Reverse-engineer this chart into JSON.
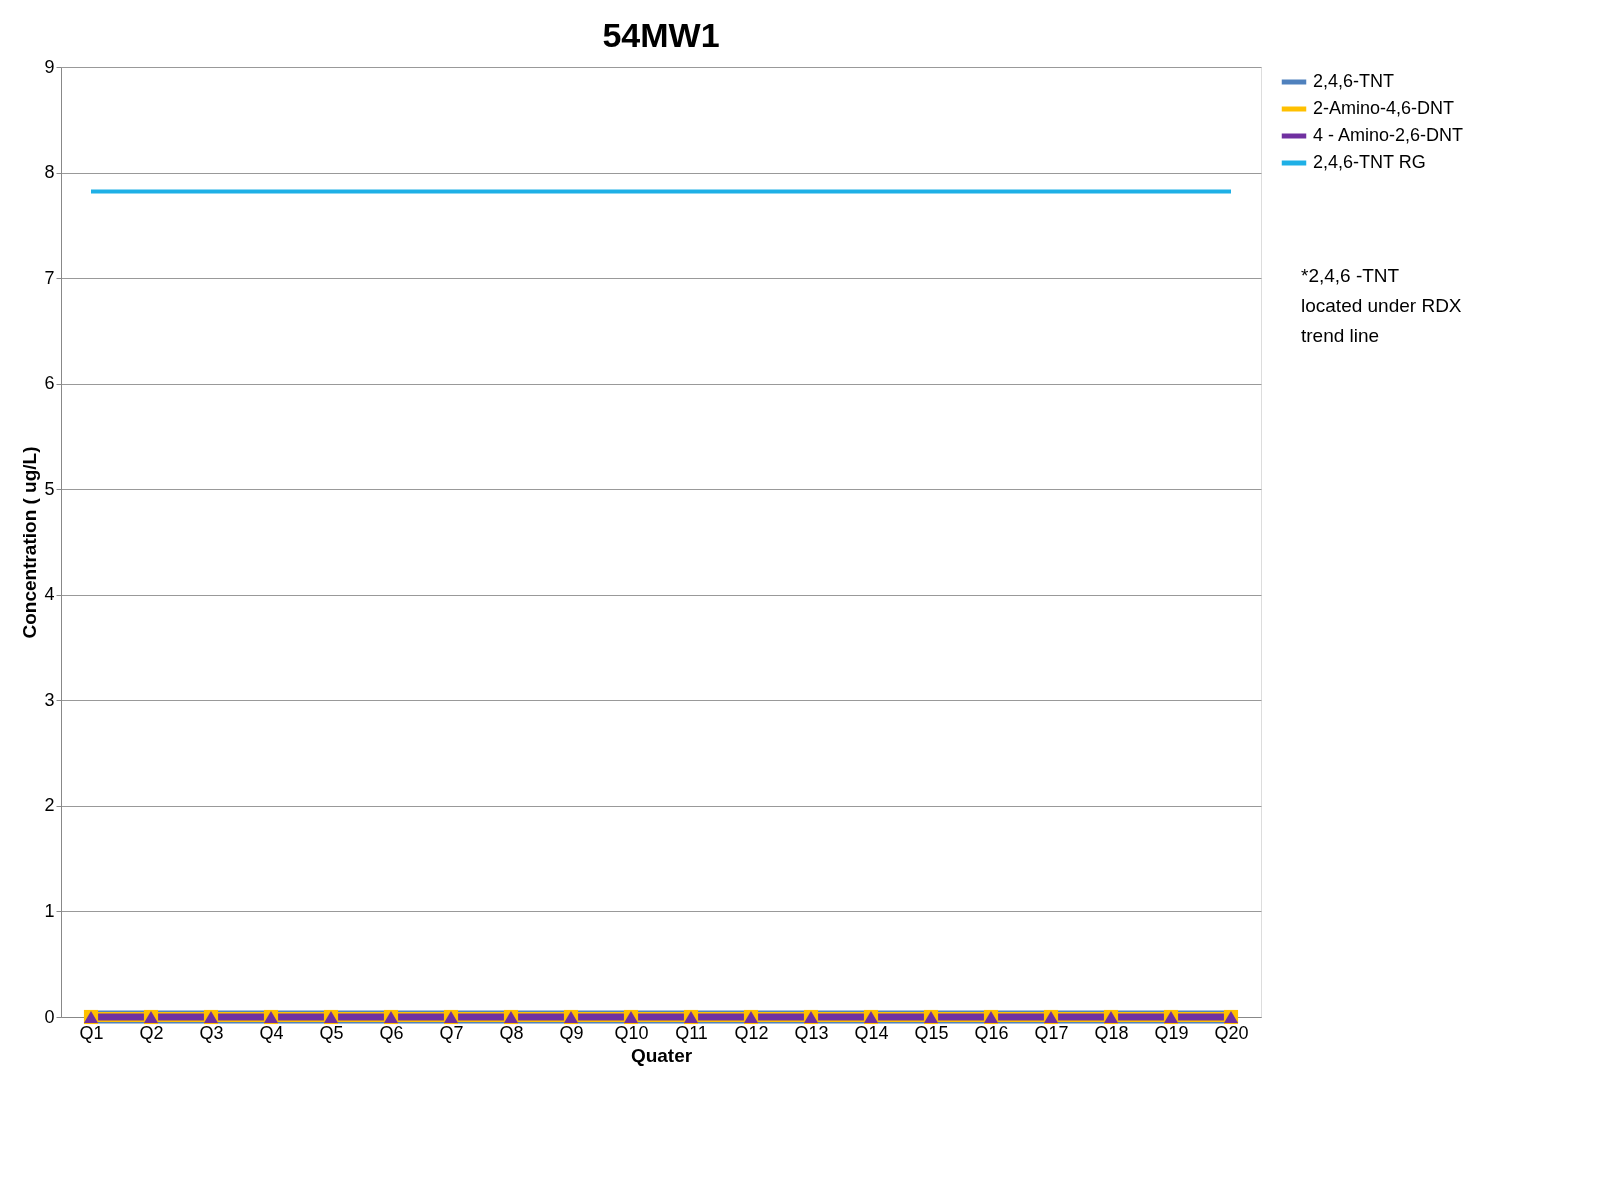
{
  "chart_data": {
    "type": "line",
    "title": "54MW1",
    "xlabel": "Quater",
    "ylabel": "Concentration ( ug/L)",
    "categories": [
      "Q1",
      "Q2",
      "Q3",
      "Q4",
      "Q5",
      "Q6",
      "Q7",
      "Q8",
      "Q9",
      "Q10",
      "Q11",
      "Q12",
      "Q13",
      "Q14",
      "Q15",
      "Q16",
      "Q17",
      "Q18",
      "Q19",
      "Q20"
    ],
    "series": [
      {
        "name": "2,4,6-TNT",
        "color": "#4f81bd",
        "marker": "diamond",
        "values": [
          0,
          0,
          0,
          0,
          0,
          0,
          0,
          0,
          0,
          0,
          0,
          0,
          0,
          0,
          0,
          0,
          0,
          0,
          0,
          0
        ]
      },
      {
        "name": "2-Amino-4,6-DNT",
        "color": "#ffc000",
        "marker": "square",
        "values": [
          0,
          0,
          0,
          0,
          0,
          0,
          0,
          0,
          0,
          0,
          0,
          0,
          0,
          0,
          0,
          0,
          0,
          0,
          0,
          0
        ]
      },
      {
        "name": "4 - Amino-2,6-DNT",
        "color": "#7030a0",
        "marker": "triangle",
        "values": [
          0,
          0,
          0,
          0,
          0,
          0,
          0,
          0,
          0,
          0,
          0,
          0,
          0,
          0,
          0,
          0,
          0,
          0,
          0,
          0
        ]
      },
      {
        "name": "2,4,6-TNT RG",
        "color": "#1fb0e6",
        "marker": "none",
        "values": [
          7.82,
          7.82,
          7.82,
          7.82,
          7.82,
          7.82,
          7.82,
          7.82,
          7.82,
          7.82,
          7.82,
          7.82,
          7.82,
          7.82,
          7.82,
          7.82,
          7.82,
          7.82,
          7.82,
          7.82
        ]
      }
    ],
    "ylim": [
      0,
      9
    ],
    "yticks": [
      0,
      1,
      2,
      3,
      4,
      5,
      6,
      7,
      8,
      9
    ],
    "grid": "y",
    "legend": "right",
    "annotations": [
      "*2,4,6 -TNT located under RDX trend line"
    ]
  }
}
